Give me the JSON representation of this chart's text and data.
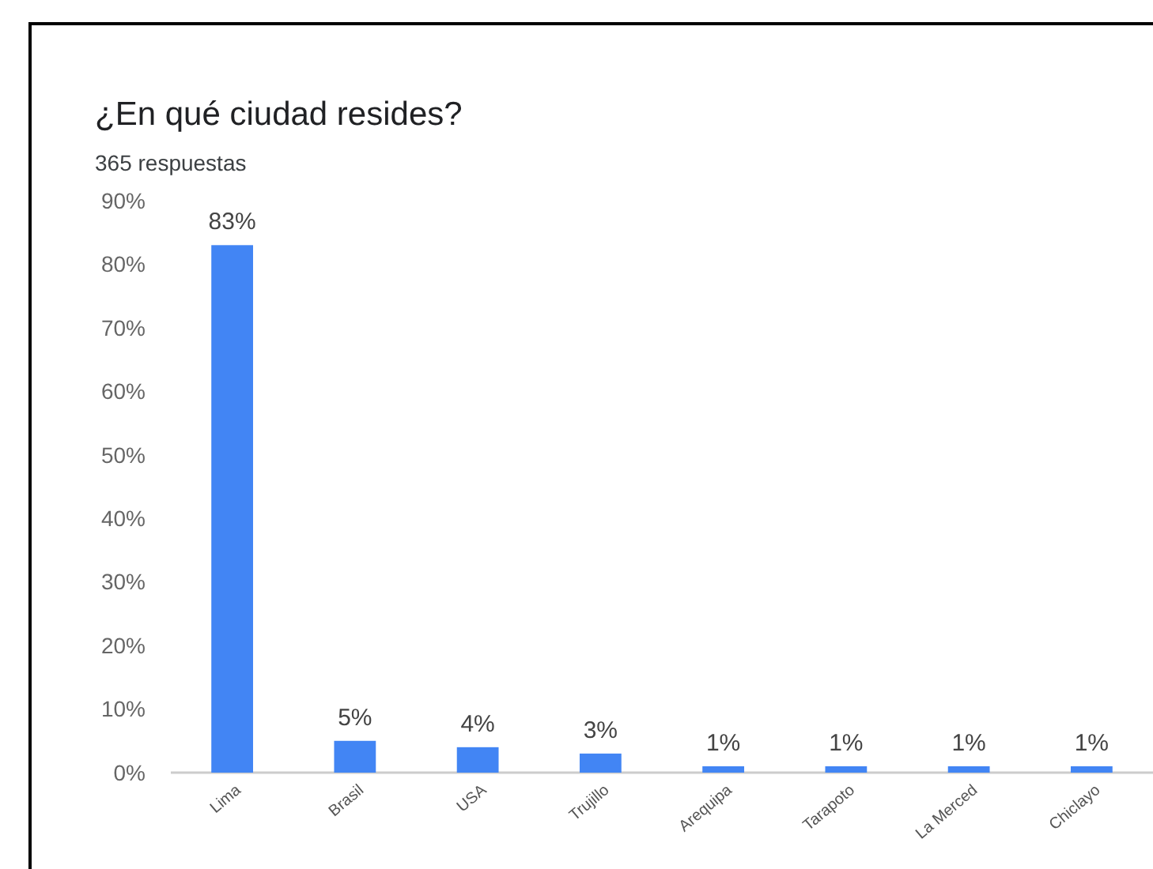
{
  "chart_data": {
    "type": "bar",
    "title": "¿En qué ciudad resides?",
    "subtitle": "365 respuestas",
    "categories": [
      "Lima",
      "Brasil",
      "USA",
      "Trujillo",
      "Arequipa",
      "Tarapoto",
      "La Merced",
      "Chiclayo"
    ],
    "values": [
      83,
      5,
      4,
      3,
      1,
      1,
      1,
      1
    ],
    "color": "#4285f4",
    "value_labels": [
      "83%",
      "5%",
      "4%",
      "3%",
      "1%",
      "1%",
      "1%",
      "1%"
    ],
    "ylim": [
      0,
      90
    ],
    "yticks": [
      {
        "value": 0,
        "label": "0%"
      },
      {
        "value": 10,
        "label": "10%"
      },
      {
        "value": 20,
        "label": "20%"
      },
      {
        "value": 30,
        "label": "30%"
      },
      {
        "value": 40,
        "label": "40%"
      },
      {
        "value": 50,
        "label": "50%"
      },
      {
        "value": 60,
        "label": "60%"
      },
      {
        "value": 70,
        "label": "70%"
      },
      {
        "value": 80,
        "label": "80%"
      },
      {
        "value": 90,
        "label": "90%"
      }
    ],
    "grid": false
  }
}
